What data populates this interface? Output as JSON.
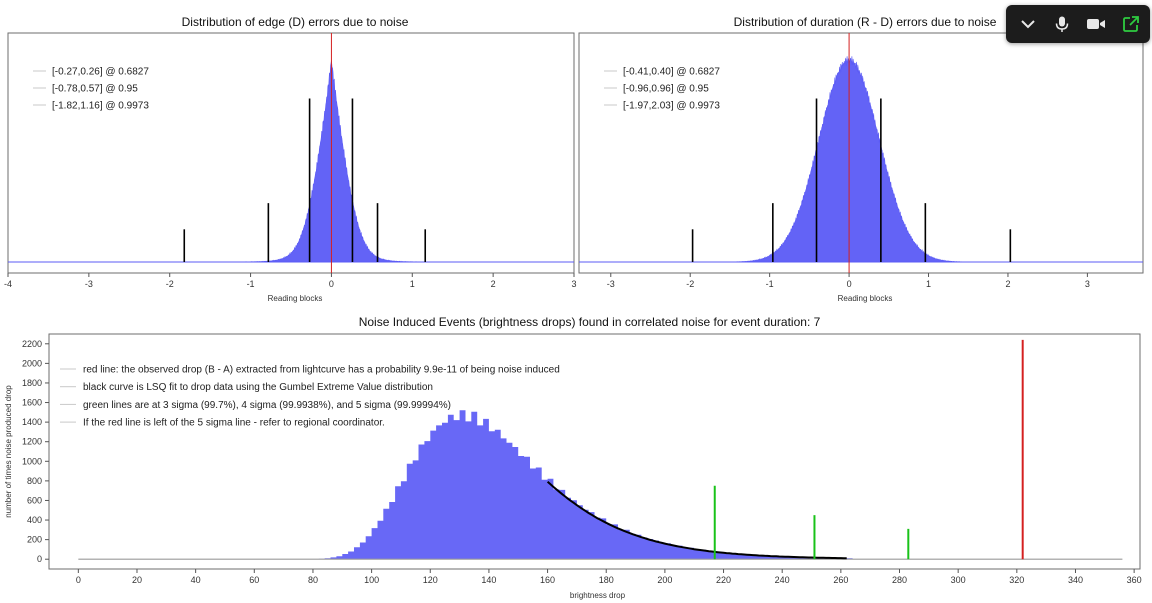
{
  "colors": {
    "hist": "#5b5bf5",
    "vline": "#000000",
    "obs": "#d42020",
    "sigma": "#19c219",
    "fit": "#000000"
  },
  "chart_data": [
    {
      "type": "histogram",
      "title": "Distribution of edge (D) errors due to noise",
      "xlabel": "Reading blocks",
      "ylabel": "",
      "xlim": [
        -4,
        3
      ],
      "xticks": [
        -4,
        -3,
        -2,
        -1,
        0,
        1,
        2,
        3
      ],
      "distribution": {
        "center": 0.0,
        "scale": 0.2,
        "shape": "peaked"
      },
      "intervals": [
        {
          "label": "[-0.27,0.26] @ 0.6827",
          "lo": -0.27,
          "hi": 0.26,
          "height": 0.75
        },
        {
          "label": "[-0.78,0.57] @ 0.95",
          "lo": -0.78,
          "hi": 0.57,
          "height": 0.27
        },
        {
          "label": "[-1.82,1.16] @ 0.9973",
          "lo": -1.82,
          "hi": 1.16,
          "height": 0.15
        }
      ],
      "red_line_x": 0
    },
    {
      "type": "histogram",
      "title": "Distribution of duration (R - D) errors due to noise",
      "xlabel": "Reading blocks",
      "ylabel": "",
      "xlim": [
        -3.4,
        3.7
      ],
      "xticks": [
        -3,
        -2,
        -1,
        0,
        1,
        2,
        3
      ],
      "distribution": {
        "center": 0.0,
        "scale": 0.38,
        "shape": "normal"
      },
      "intervals": [
        {
          "label": "[-0.41,0.40] @ 0.6827",
          "lo": -0.41,
          "hi": 0.4,
          "height": 0.75
        },
        {
          "label": "[-0.96,0.96] @ 0.95",
          "lo": -0.96,
          "hi": 0.96,
          "height": 0.27
        },
        {
          "label": "[-1.97,2.03] @ 0.9973",
          "lo": -1.97,
          "hi": 2.03,
          "height": 0.15
        }
      ],
      "red_line_x": 0
    },
    {
      "type": "histogram",
      "title": "Noise Induced Events (brightness drops) found in correlated noise for event duration: 7",
      "xlabel": "brightness drop",
      "ylabel": "number of times noise produced drop",
      "xlim": [
        -10,
        362
      ],
      "ylim": [
        -100,
        2300
      ],
      "xticks": [
        0,
        20,
        40,
        60,
        80,
        100,
        120,
        140,
        160,
        180,
        200,
        220,
        240,
        260,
        280,
        300,
        320,
        340,
        360
      ],
      "yticks": [
        0,
        200,
        400,
        600,
        800,
        1000,
        1200,
        1400,
        1600,
        1800,
        2000,
        2200
      ],
      "bin_width": 2,
      "histogram_peak": {
        "x": 133,
        "y": 1470
      },
      "fit_range": [
        160,
        262
      ],
      "observed_drop": {
        "x": 322,
        "y": 2240
      },
      "sigma_lines": [
        {
          "x": 217,
          "y": 750
        },
        {
          "x": 251,
          "y": 450
        },
        {
          "x": 283,
          "y": 310
        }
      ],
      "legend": [
        "red line: the observed drop (B - A) extracted from lightcurve has a probability 9.9e-11 of being noise induced",
        "black curve is LSQ fit to drop data using the Gumbel Extreme Value distribution",
        "green lines are at 3 sigma (99.7%), 4 sigma (99.9938%), and 5 sigma (99.99994%)",
        "If the red line is left of the 5 sigma line - refer to regional coordinator."
      ]
    }
  ],
  "overlay": {
    "icons": [
      "chevron-down-icon",
      "microphone-icon",
      "video-camera-icon",
      "share-icon"
    ]
  }
}
